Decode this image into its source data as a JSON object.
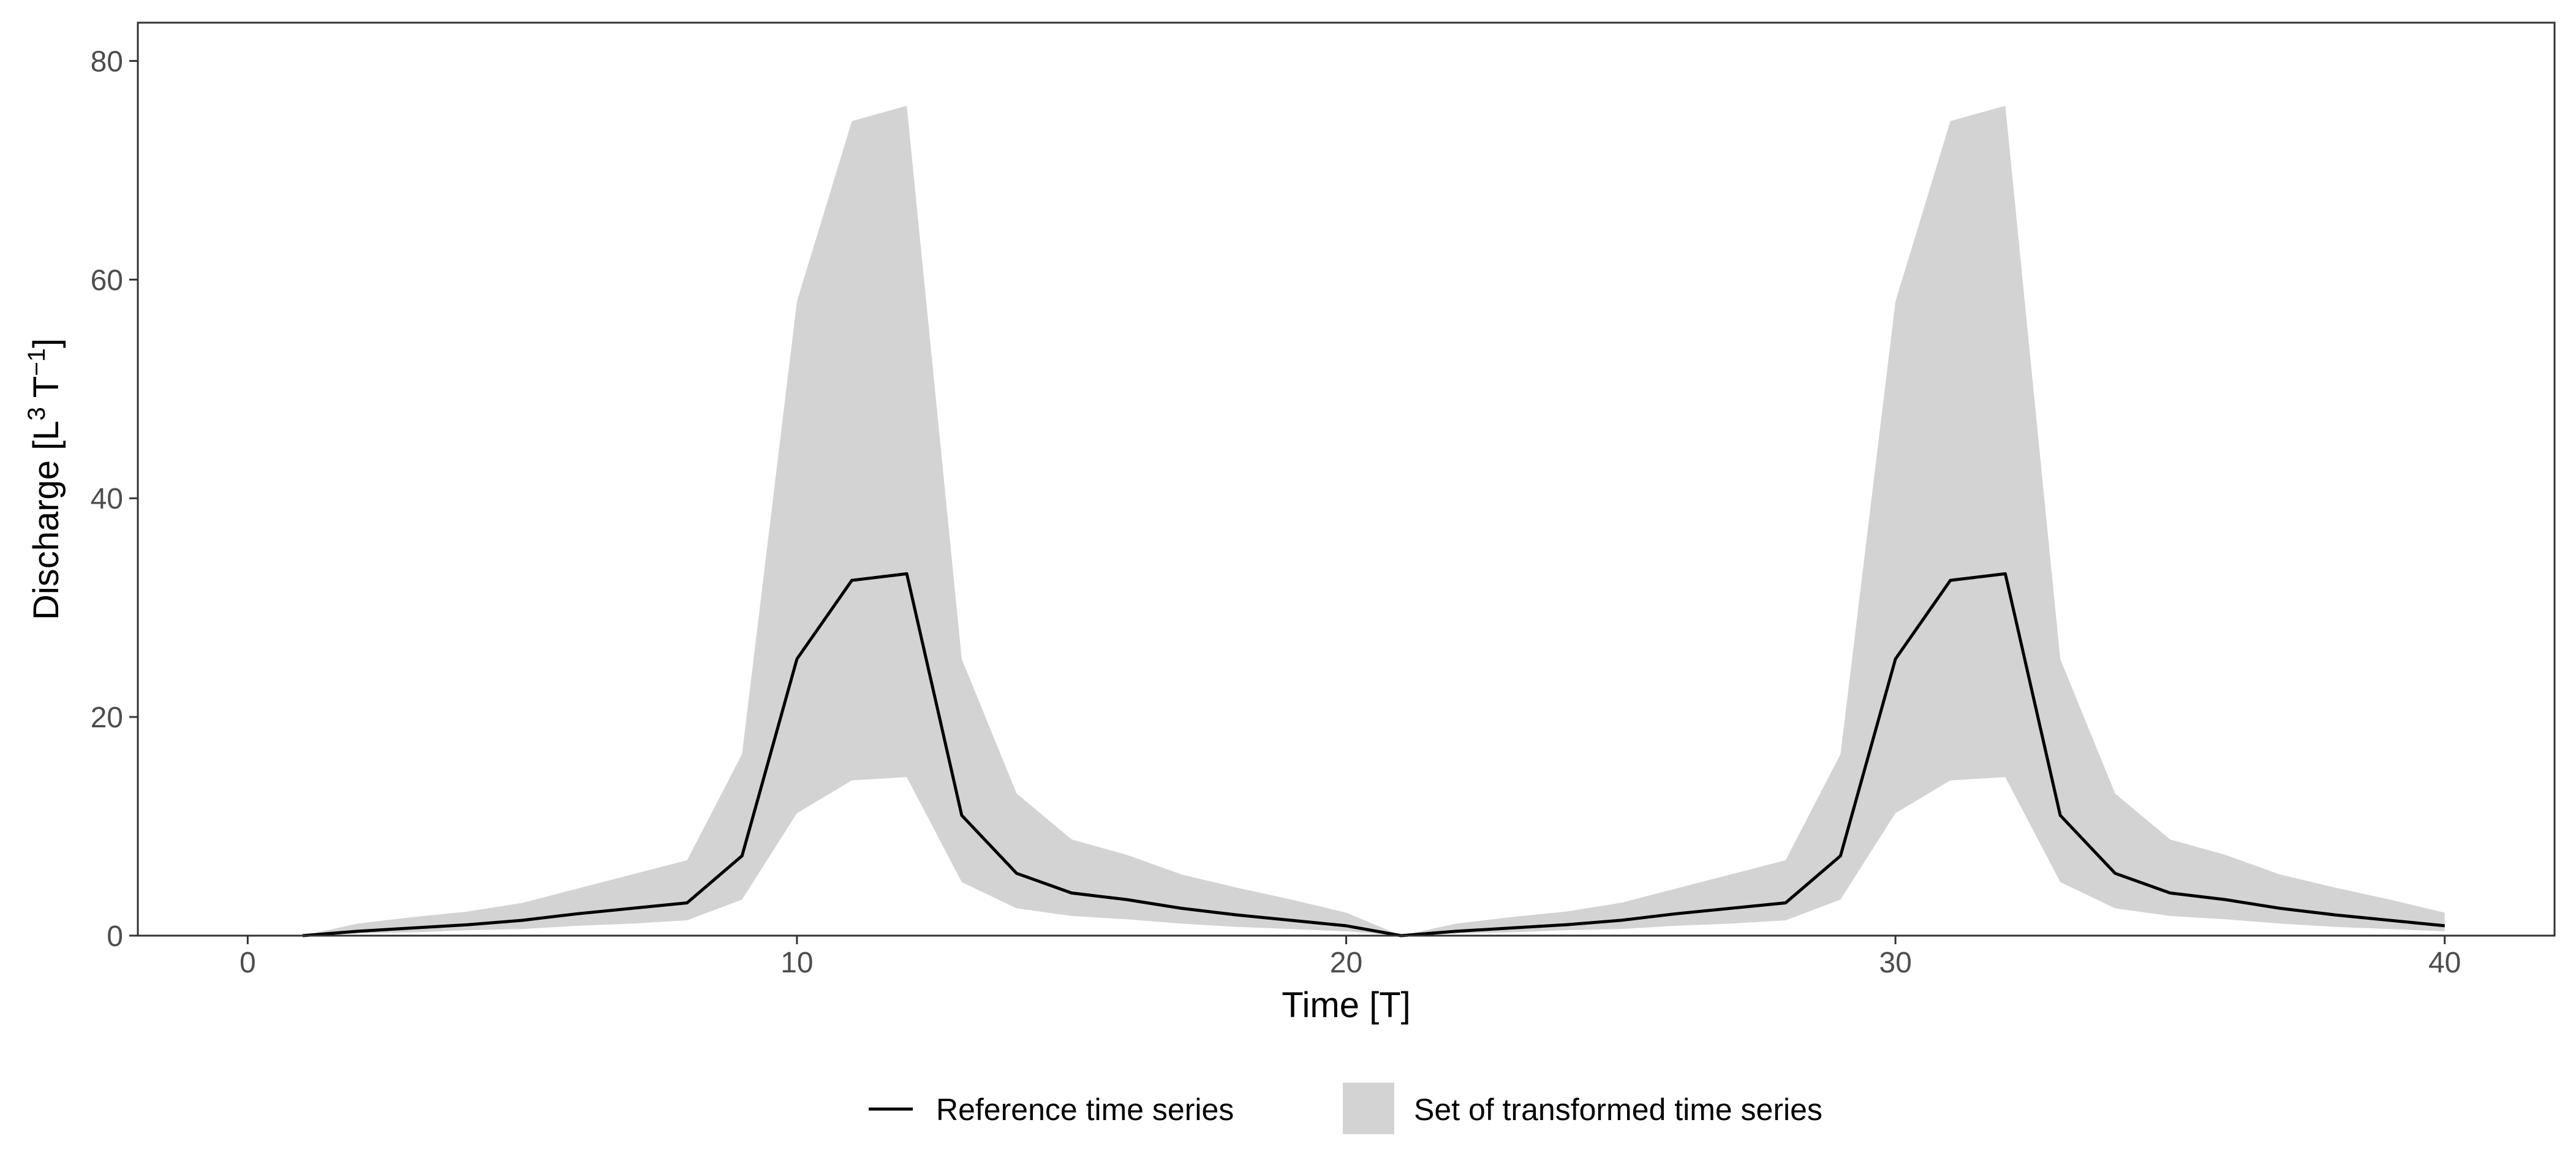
{
  "chart_data": {
    "type": "area",
    "xlabel": "Time [T]",
    "ylabel": {
      "prefix": "Discharge [L",
      "sup1": "3",
      "mid": " T",
      "sup2": "−1",
      "suffix": "]"
    },
    "xlim": [
      -2,
      42
    ],
    "ylim": [
      0,
      83.5
    ],
    "xticks": [
      0,
      10,
      20,
      30,
      40
    ],
    "yticks": [
      0,
      20,
      40,
      60,
      80
    ],
    "grid": false,
    "legend_position": "bottom",
    "colors": {
      "band": "#d3d3d3",
      "line": "#000000",
      "frame": "#333333",
      "tick_label": "#4d4d4d"
    },
    "series": [
      {
        "name": "Set of transformed time series",
        "kind": "ribbon",
        "x": [
          1,
          2,
          3,
          4,
          5,
          6,
          7,
          8,
          9,
          10,
          11,
          12,
          13,
          14,
          15,
          16,
          17,
          18,
          19,
          20,
          21,
          22,
          23,
          24,
          25,
          26,
          27,
          28,
          29,
          30,
          31,
          32,
          33,
          34,
          35,
          36,
          37,
          38,
          39,
          40
        ],
        "lower": [
          0,
          0.2,
          0.3,
          0.5,
          0.6,
          0.9,
          1.1,
          1.4,
          3.3,
          11.2,
          14.2,
          14.5,
          4.9,
          2.5,
          1.8,
          1.5,
          1.1,
          0.8,
          0.6,
          0.4,
          0,
          0.2,
          0.3,
          0.5,
          0.6,
          0.9,
          1.1,
          1.4,
          3.3,
          11.2,
          14.2,
          14.5,
          4.9,
          2.5,
          1.8,
          1.5,
          1.1,
          0.8,
          0.6,
          0.4
        ],
        "upper": [
          0,
          1.1,
          1.7,
          2.2,
          3,
          4.3,
          5.6,
          6.9,
          16.6,
          58,
          74.5,
          75.9,
          25.3,
          13,
          8.8,
          7.4,
          5.6,
          4.4,
          3.3,
          2.1,
          0,
          1.1,
          1.7,
          2.2,
          3,
          4.3,
          5.6,
          6.9,
          16.6,
          58,
          74.5,
          75.9,
          25.3,
          13,
          8.8,
          7.4,
          5.6,
          4.4,
          3.3,
          2.1
        ]
      },
      {
        "name": "Reference time series",
        "kind": "line",
        "x": [
          1,
          2,
          3,
          4,
          5,
          6,
          7,
          8,
          9,
          10,
          11,
          12,
          13,
          14,
          15,
          16,
          17,
          18,
          19,
          20,
          21,
          22,
          23,
          24,
          25,
          26,
          27,
          28,
          29,
          30,
          31,
          32,
          33,
          34,
          35,
          36,
          37,
          38,
          39,
          40
        ],
        "values": [
          0,
          0.4,
          0.7,
          1,
          1.4,
          2,
          2.5,
          3,
          7.3,
          25.3,
          32.5,
          33.1,
          11,
          5.7,
          3.9,
          3.3,
          2.5,
          1.9,
          1.4,
          0.9,
          0,
          0.4,
          0.7,
          1,
          1.4,
          2,
          2.5,
          3,
          7.3,
          25.3,
          32.5,
          33.1,
          11,
          5.7,
          3.9,
          3.3,
          2.5,
          1.9,
          1.4,
          0.9
        ]
      }
    ]
  }
}
